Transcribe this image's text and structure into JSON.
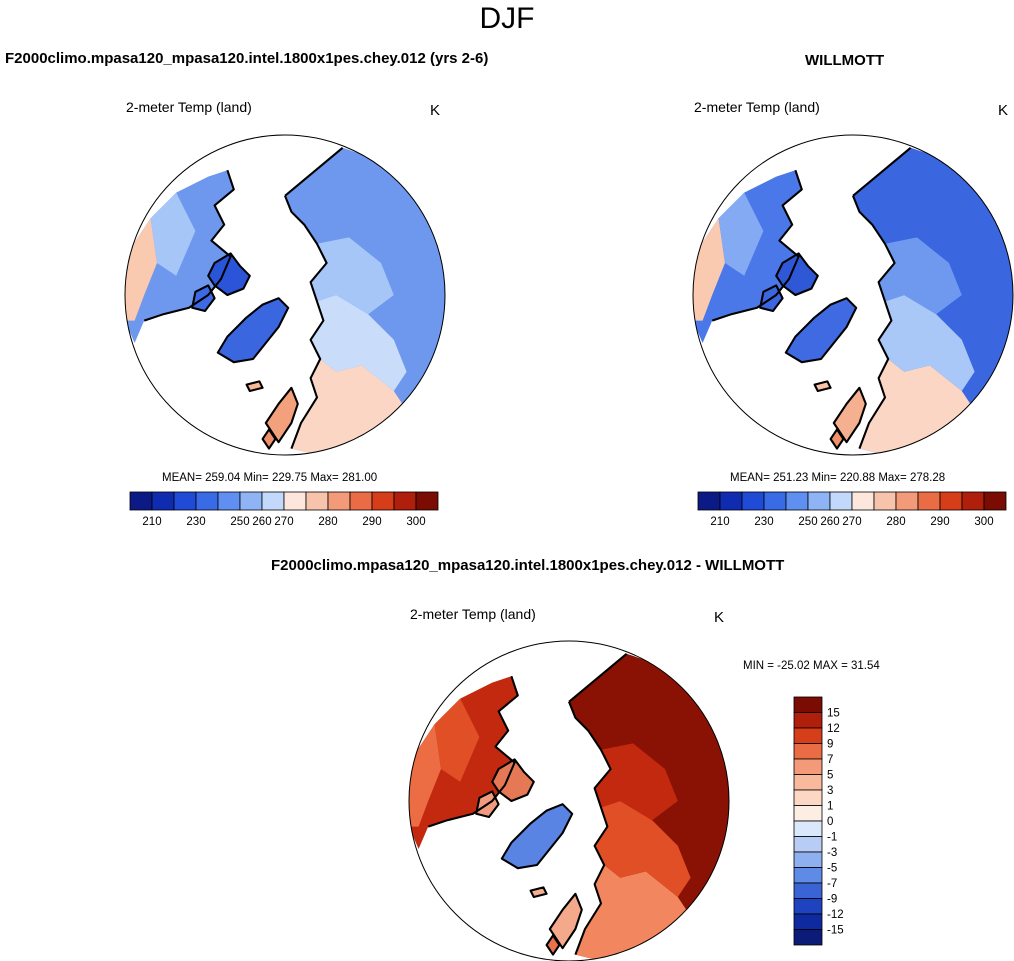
{
  "figure": {
    "season": "DJF"
  },
  "panels": [
    {
      "title": "F2000climo.mpasa120_mpasa120.intel.1800x1pes.chey.012 (yrs 2-6)",
      "variable": "2-meter Temp (land)",
      "units": "K",
      "stats": "MEAN= 259.04  Min= 229.75  Max= 281.00",
      "scheme": "model",
      "colorbar": {
        "colors": [
          "#0c1a86",
          "#0f2bb0",
          "#1f4bd6",
          "#3a6be6",
          "#5f8ff0",
          "#8fb4f5",
          "#c3d9fb",
          "#fde7dc",
          "#f8c3ab",
          "#f39a78",
          "#ea6c45",
          "#d63d19",
          "#b01f0c",
          "#7a0c04"
        ],
        "labels": [
          "210",
          "230",
          "250",
          "260",
          "270",
          "280",
          "290",
          "300"
        ]
      }
    },
    {
      "title": "WILLMOTT",
      "variable": "2-meter Temp (land)",
      "units": "K",
      "stats": "MEAN= 251.23  Min= 220.88  Max= 278.28",
      "scheme": "obs",
      "colorbar": {
        "colors": [
          "#0c1a86",
          "#0f2bb0",
          "#1f4bd6",
          "#3a6be6",
          "#5f8ff0",
          "#8fb4f5",
          "#c3d9fb",
          "#fde7dc",
          "#f8c3ab",
          "#f39a78",
          "#ea6c45",
          "#d63d19",
          "#b01f0c",
          "#7a0c04"
        ],
        "labels": [
          "210",
          "230",
          "250",
          "260",
          "270",
          "280",
          "290",
          "300"
        ]
      }
    },
    {
      "title": "F2000climo.mpasa120_mpasa120.intel.1800x1pes.chey.012 - WILLMOTT",
      "variable": "2-meter Temp (land)",
      "units": "K",
      "stats": "MIN = -25.02 MAX =  31.54",
      "scheme": "diff",
      "colorbar": {
        "colors": [
          "#7a0c04",
          "#b01f0c",
          "#d63d19",
          "#ea6c45",
          "#f39a78",
          "#f8b99c",
          "#fcd7c4",
          "#fdeee3",
          "#dbe7fb",
          "#b7cdf5",
          "#8fb0ee",
          "#5f8ae6",
          "#3a63d6",
          "#1f42c0",
          "#0f2aa0",
          "#0c1a78"
        ],
        "labels": [
          "15",
          "12",
          "9",
          "7",
          "5",
          "3",
          "1",
          "0",
          "-1",
          "-3",
          "-5",
          "-7",
          "-9",
          "-12",
          "-15"
        ]
      }
    }
  ]
}
